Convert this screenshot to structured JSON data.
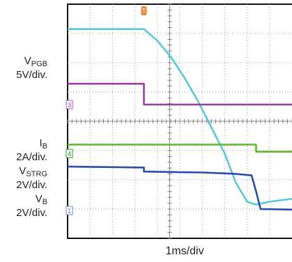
{
  "chart_data": {
    "type": "line",
    "x_axis": {
      "label": "1ms/div",
      "divisions": 10,
      "range": [
        0,
        10
      ]
    },
    "y_axis": {
      "divisions": 8,
      "range": [
        0,
        8
      ]
    },
    "grid": true,
    "labels": [
      {
        "main": "V",
        "sub": "PGB",
        "scale": "5V/div."
      },
      {
        "main": "I",
        "sub": "B",
        "scale": "2A/div."
      },
      {
        "main": "V",
        "sub": "STRG",
        "scale": "2V/div."
      },
      {
        "main": "V",
        "sub": "B",
        "scale": "2V/div."
      }
    ],
    "markers": [
      {
        "text": "3",
        "color": "#b04fb4",
        "y_div": 4.57
      },
      {
        "text": "4",
        "color": "#2a9a2a",
        "y_div": 2.9
      },
      {
        "text": "1",
        "color": "#6f7fd8",
        "y_div": 0.95
      }
    ],
    "trigger_marker": {
      "text": "T",
      "color": "#e8873a",
      "x_div": 3.4
    },
    "series": [
      {
        "id": "cyan",
        "color": "#5cc6d8",
        "x": [
          0,
          3.4,
          4.0,
          4.6,
          5.2,
          5.8,
          6.4,
          7.0,
          7.5,
          8.0,
          8.4,
          9.0,
          10
        ],
        "y": [
          7.15,
          7.15,
          6.75,
          6.2,
          5.5,
          4.7,
          3.8,
          2.9,
          1.9,
          1.25,
          1.15,
          1.25,
          1.35
        ]
      },
      {
        "id": "magenta",
        "color": "#9a3fa6",
        "x": [
          0,
          3.4,
          3.4,
          10
        ],
        "y": [
          5.28,
          5.28,
          4.57,
          4.57
        ]
      },
      {
        "id": "green",
        "color": "#5cbe2f",
        "x": [
          0,
          8.4,
          8.4,
          10
        ],
        "y": [
          3.2,
          3.2,
          2.96,
          2.96
        ]
      },
      {
        "id": "blue",
        "color": "#2a4cab",
        "x": [
          0,
          3.4,
          3.4,
          5.0,
          6.0,
          7.0,
          7.5,
          8.2,
          8.4,
          8.6,
          10
        ],
        "y": [
          2.45,
          2.42,
          2.28,
          2.26,
          2.25,
          2.22,
          2.2,
          2.15,
          1.6,
          1.0,
          0.98
        ]
      }
    ]
  }
}
